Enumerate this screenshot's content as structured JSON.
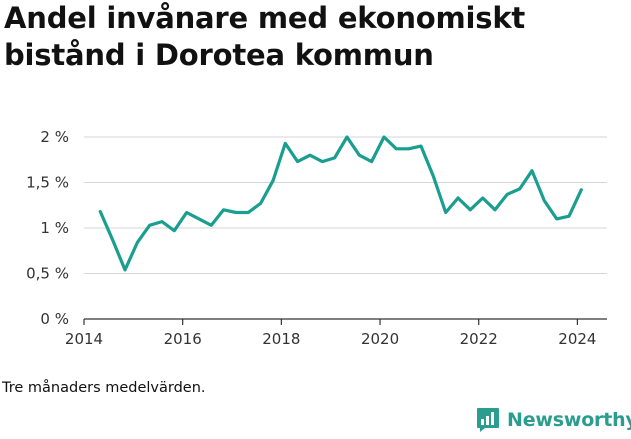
{
  "title": "Andel invånare med ekonomiskt bistånd i Dorotea kommun",
  "footnote": "Tre månaders medelvärden.",
  "brand": {
    "name": "Newsworthy",
    "icon": "newsworthy-logo-icon",
    "color": "#2a9d8f"
  },
  "chart_data": {
    "type": "line",
    "title": "Andel invånare med ekonomiskt bistånd i Dorotea kommun",
    "xlabel": "",
    "ylabel": "",
    "xlim": [
      2014,
      2024.6
    ],
    "ylim": [
      0,
      2
    ],
    "x_ticks": [
      2014,
      2016,
      2018,
      2020,
      2022,
      2024
    ],
    "x_tick_labels": [
      "2014",
      "2016",
      "2018",
      "2020",
      "2022",
      "2024"
    ],
    "y_ticks": [
      0,
      0.5,
      1,
      1.5,
      2
    ],
    "y_tick_labels": [
      "0 %",
      "0,5 %",
      "1 %",
      "1,5 %",
      "2 %"
    ],
    "grid": "horizontal",
    "line_color": "#1a9e8f",
    "series": [
      {
        "name": "",
        "x": [
          2014.33,
          2014.58,
          2014.83,
          2015.08,
          2015.33,
          2015.58,
          2015.83,
          2016.08,
          2016.33,
          2016.58,
          2016.83,
          2017.08,
          2017.33,
          2017.58,
          2017.83,
          2018.08,
          2018.33,
          2018.58,
          2018.83,
          2019.08,
          2019.33,
          2019.58,
          2019.83,
          2020.08,
          2020.33,
          2020.58,
          2020.83,
          2021.08,
          2021.33,
          2021.58,
          2021.83,
          2022.08,
          2022.33,
          2022.58,
          2022.83,
          2023.08,
          2023.33,
          2023.58,
          2023.83,
          2024.08
        ],
        "y": [
          1.18,
          0.87,
          0.54,
          0.84,
          1.03,
          1.07,
          0.97,
          1.17,
          1.1,
          1.03,
          1.2,
          1.17,
          1.17,
          1.27,
          1.52,
          1.93,
          1.73,
          1.8,
          1.73,
          1.77,
          2.0,
          1.8,
          1.73,
          2.0,
          1.87,
          1.87,
          1.9,
          1.57,
          1.17,
          1.33,
          1.2,
          1.33,
          1.2,
          1.37,
          1.43,
          1.63,
          1.3,
          1.1,
          1.13,
          1.42
        ]
      }
    ]
  }
}
